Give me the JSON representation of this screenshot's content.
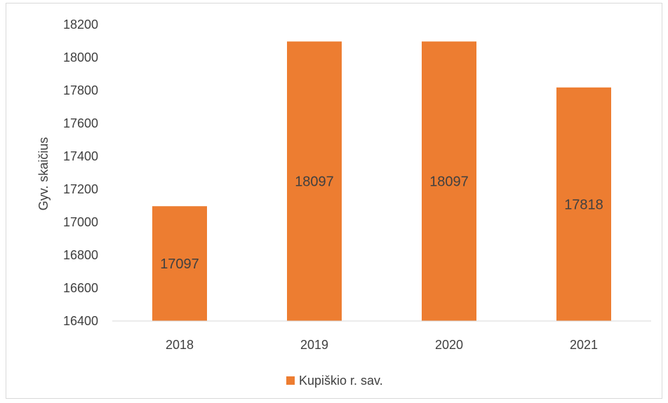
{
  "chart_data": {
    "type": "bar",
    "categories": [
      "2018",
      "2019",
      "2020",
      "2021"
    ],
    "series": [
      {
        "name": "Kupiškio r. sav.",
        "values": [
          17097,
          18097,
          18097,
          17818
        ],
        "color": "#ed7d31"
      }
    ],
    "data_labels": [
      "17097",
      "18097",
      "18097",
      "17818"
    ],
    "ylabel": "Gyv. skaičius",
    "ylim": [
      16400,
      18200
    ],
    "yticks": [
      16400,
      16600,
      16800,
      17000,
      17200,
      17400,
      17600,
      17800,
      18000,
      18200
    ],
    "legend_position": "bottom",
    "grid": false
  }
}
